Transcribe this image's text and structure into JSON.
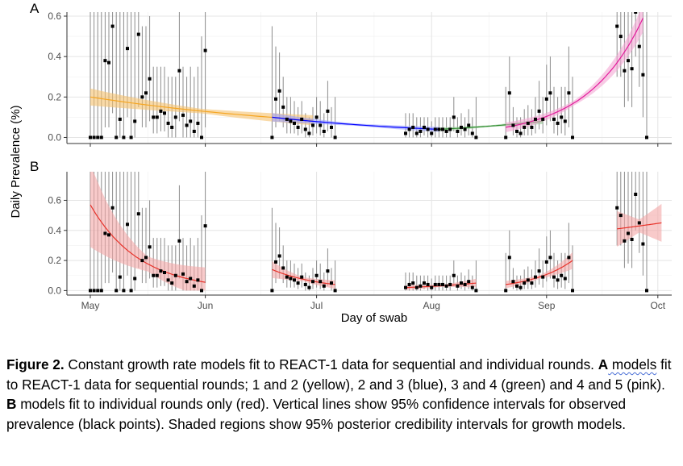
{
  "chart_data": {
    "type": "scatter",
    "xlabel": "Day of swab",
    "ylabel": "Daily Prevalence (%)",
    "x_ticks": [
      {
        "label": "May",
        "day": 0
      },
      {
        "label": "Jun",
        "day": 31
      },
      {
        "label": "Jul",
        "day": 61
      },
      {
        "label": "Aug",
        "day": 92
      },
      {
        "label": "Sep",
        "day": 123
      },
      {
        "label": "Oct",
        "day": 153
      }
    ],
    "xlim": [
      -11,
      162
    ],
    "panels": [
      {
        "label": "A",
        "ylim": [
          -0.03,
          0.62
        ],
        "y_ticks": [
          "0.0",
          "0.2",
          "0.4",
          "0.6"
        ],
        "y_tick_values": [
          0,
          0.2,
          0.4,
          0.6
        ],
        "fits": [
          {
            "name": "1 and 2",
            "color": "#f5a623",
            "fill": "#f5c16e",
            "x_start": 0,
            "x_end": 60,
            "y_start": 0.2,
            "y_end": 0.085,
            "band": 0.03
          },
          {
            "name": "2 and 3",
            "color": "#0000ff",
            "fill": "#9aa0ff",
            "x_start": 49,
            "x_end": 94,
            "y_start": 0.1,
            "y_end": 0.04,
            "band": 0.015
          },
          {
            "name": "3 and 4",
            "color": "#2e8b2e",
            "fill": "#9acd9a",
            "x_start": 94,
            "x_end": 122,
            "y_start": 0.04,
            "y_end": 0.08,
            "band": 0.01
          },
          {
            "name": "4 and 5",
            "color": "#e41a9c",
            "fill": "#f3a6d4",
            "x_start": 112,
            "x_end": 149,
            "y_start": 0.05,
            "y_end": 0.59,
            "band": 0.05
          }
        ]
      },
      {
        "label": "B",
        "ylim": [
          -0.03,
          0.79
        ],
        "y_ticks": [
          "0.0",
          "0.2",
          "0.4",
          "0.6"
        ],
        "y_tick_values": [
          0,
          0.2,
          0.4,
          0.6
        ],
        "fits": [
          {
            "name": "round 1",
            "color": "#e8322a",
            "fill": "#f4a6a6",
            "x_start": 0,
            "x_end": 31,
            "y_start": 0.57,
            "y_end": 0.055,
            "band": 0.2
          },
          {
            "name": "round 2",
            "color": "#e8322a",
            "fill": "#f4a6a6",
            "x_start": 49,
            "x_end": 66,
            "y_start": 0.14,
            "y_end": 0.04,
            "band": 0.04
          },
          {
            "name": "round 3",
            "color": "#e8322a",
            "fill": "#f4a6a6",
            "x_start": 85,
            "x_end": 104,
            "y_start": 0.02,
            "y_end": 0.05,
            "band": 0.02
          },
          {
            "name": "round 4",
            "color": "#e8322a",
            "fill": "#f4a6a6",
            "x_start": 112,
            "x_end": 130,
            "y_start": 0.04,
            "y_end": 0.2,
            "band": 0.04
          },
          {
            "name": "round 5",
            "color": "#e8322a",
            "fill": "#f4a6a6",
            "x_start": 142,
            "x_end": 154,
            "y_start": 0.41,
            "y_end": 0.45,
            "band": 0.09
          }
        ]
      }
    ],
    "observed": [
      {
        "day": 0,
        "y": 0.0,
        "ci": [
          0.0,
          1.2
        ]
      },
      {
        "day": 1,
        "y": 0.0,
        "ci": [
          0.0,
          1.2
        ]
      },
      {
        "day": 2,
        "y": 0.0,
        "ci": [
          0.0,
          1.2
        ]
      },
      {
        "day": 3,
        "y": 0.0,
        "ci": [
          0.0,
          1.2
        ]
      },
      {
        "day": 4,
        "y": 0.38,
        "ci": [
          0.05,
          1.2
        ]
      },
      {
        "day": 5,
        "y": 0.37,
        "ci": [
          0.05,
          1.2
        ]
      },
      {
        "day": 6,
        "y": 0.55,
        "ci": [
          0.12,
          1.2
        ]
      },
      {
        "day": 7,
        "y": 0.0,
        "ci": [
          0.0,
          1.2
        ]
      },
      {
        "day": 8,
        "y": 0.09,
        "ci": [
          0.0,
          1.2
        ]
      },
      {
        "day": 9,
        "y": 0.0,
        "ci": [
          0.0,
          1.2
        ]
      },
      {
        "day": 10,
        "y": 0.44,
        "ci": [
          0.1,
          0.9
        ]
      },
      {
        "day": 11,
        "y": 0.0,
        "ci": [
          0.0,
          0.9
        ]
      },
      {
        "day": 12,
        "y": 0.08,
        "ci": [
          0.0,
          0.9
        ]
      },
      {
        "day": 13,
        "y": 0.51,
        "ci": [
          0.15,
          0.9
        ]
      },
      {
        "day": 14,
        "y": 0.2,
        "ci": [
          0.05,
          0.55
        ]
      },
      {
        "day": 15,
        "y": 0.22,
        "ci": [
          0.05,
          0.55
        ]
      },
      {
        "day": 16,
        "y": 0.29,
        "ci": [
          0.08,
          0.6
        ]
      },
      {
        "day": 17,
        "y": 0.1,
        "ci": [
          0.02,
          0.35
        ]
      },
      {
        "day": 18,
        "y": 0.1,
        "ci": [
          0.02,
          0.35
        ]
      },
      {
        "day": 19,
        "y": 0.13,
        "ci": [
          0.03,
          0.35
        ]
      },
      {
        "day": 20,
        "y": 0.12,
        "ci": [
          0.03,
          0.35
        ]
      },
      {
        "day": 21,
        "y": 0.07,
        "ci": [
          0.0,
          0.3
        ]
      },
      {
        "day": 22,
        "y": 0.05,
        "ci": [
          0.0,
          0.3
        ]
      },
      {
        "day": 23,
        "y": 0.1,
        "ci": [
          0.0,
          0.3
        ]
      },
      {
        "day": 24,
        "y": 0.33,
        "ci": [
          0.08,
          0.7
        ]
      },
      {
        "day": 25,
        "y": 0.11,
        "ci": [
          0.0,
          0.35
        ]
      },
      {
        "day": 26,
        "y": 0.06,
        "ci": [
          0.0,
          0.3
        ]
      },
      {
        "day": 27,
        "y": 0.08,
        "ci": [
          0.0,
          0.35
        ]
      },
      {
        "day": 28,
        "y": 0.03,
        "ci": [
          0.0,
          0.3
        ]
      },
      {
        "day": 29,
        "y": 0.07,
        "ci": [
          0.0,
          0.35
        ]
      },
      {
        "day": 30,
        "y": 0.0,
        "ci": [
          0.0,
          0.5
        ]
      },
      {
        "day": 31,
        "y": 0.43,
        "ci": [
          0.05,
          1.2
        ]
      },
      {
        "day": 49,
        "y": 0.0,
        "ci": [
          0.0,
          0.55
        ]
      },
      {
        "day": 50,
        "y": 0.19,
        "ci": [
          0.05,
          0.45
        ]
      },
      {
        "day": 51,
        "y": 0.23,
        "ci": [
          0.08,
          0.42
        ]
      },
      {
        "day": 52,
        "y": 0.15,
        "ci": [
          0.05,
          0.3
        ]
      },
      {
        "day": 53,
        "y": 0.09,
        "ci": [
          0.02,
          0.2
        ]
      },
      {
        "day": 54,
        "y": 0.08,
        "ci": [
          0.02,
          0.2
        ]
      },
      {
        "day": 55,
        "y": 0.07,
        "ci": [
          0.02,
          0.18
        ]
      },
      {
        "day": 56,
        "y": 0.05,
        "ci": [
          0.01,
          0.15
        ]
      },
      {
        "day": 57,
        "y": 0.09,
        "ci": [
          0.02,
          0.18
        ]
      },
      {
        "day": 58,
        "y": 0.04,
        "ci": [
          0.0,
          0.12
        ]
      },
      {
        "day": 59,
        "y": 0.02,
        "ci": [
          0.0,
          0.1
        ]
      },
      {
        "day": 60,
        "y": 0.06,
        "ci": [
          0.01,
          0.15
        ]
      },
      {
        "day": 61,
        "y": 0.1,
        "ci": [
          0.02,
          0.2
        ]
      },
      {
        "day": 62,
        "y": 0.06,
        "ci": [
          0.01,
          0.18
        ]
      },
      {
        "day": 63,
        "y": 0.03,
        "ci": [
          0.0,
          0.12
        ]
      },
      {
        "day": 64,
        "y": 0.13,
        "ci": [
          0.03,
          0.28
        ]
      },
      {
        "day": 65,
        "y": 0.05,
        "ci": [
          0.0,
          0.15
        ]
      },
      {
        "day": 66,
        "y": 0.0,
        "ci": [
          0.0,
          0.2
        ]
      },
      {
        "day": 85,
        "y": 0.02,
        "ci": [
          0.0,
          0.12
        ]
      },
      {
        "day": 86,
        "y": 0.04,
        "ci": [
          0.0,
          0.12
        ]
      },
      {
        "day": 87,
        "y": 0.05,
        "ci": [
          0.0,
          0.12
        ]
      },
      {
        "day": 88,
        "y": 0.02,
        "ci": [
          0.0,
          0.1
        ]
      },
      {
        "day": 89,
        "y": 0.03,
        "ci": [
          0.0,
          0.1
        ]
      },
      {
        "day": 90,
        "y": 0.05,
        "ci": [
          0.01,
          0.1
        ]
      },
      {
        "day": 91,
        "y": 0.04,
        "ci": [
          0.0,
          0.1
        ]
      },
      {
        "day": 92,
        "y": 0.02,
        "ci": [
          0.0,
          0.08
        ]
      },
      {
        "day": 93,
        "y": 0.04,
        "ci": [
          0.0,
          0.1
        ]
      },
      {
        "day": 94,
        "y": 0.04,
        "ci": [
          0.0,
          0.1
        ]
      },
      {
        "day": 95,
        "y": 0.04,
        "ci": [
          0.0,
          0.1
        ]
      },
      {
        "day": 96,
        "y": 0.03,
        "ci": [
          0.0,
          0.1
        ]
      },
      {
        "day": 97,
        "y": 0.04,
        "ci": [
          0.0,
          0.1
        ]
      },
      {
        "day": 98,
        "y": 0.1,
        "ci": [
          0.03,
          0.2
        ]
      },
      {
        "day": 99,
        "y": 0.03,
        "ci": [
          0.0,
          0.1
        ]
      },
      {
        "day": 100,
        "y": 0.05,
        "ci": [
          0.01,
          0.12
        ]
      },
      {
        "day": 101,
        "y": 0.04,
        "ci": [
          0.0,
          0.1
        ]
      },
      {
        "day": 102,
        "y": 0.06,
        "ci": [
          0.01,
          0.14
        ]
      },
      {
        "day": 103,
        "y": 0.02,
        "ci": [
          0.0,
          0.1
        ]
      },
      {
        "day": 104,
        "y": 0.0,
        "ci": [
          0.0,
          0.2
        ]
      },
      {
        "day": 112,
        "y": 0.0,
        "ci": [
          0.0,
          0.25
        ]
      },
      {
        "day": 113,
        "y": 0.22,
        "ci": [
          0.05,
          0.4
        ]
      },
      {
        "day": 114,
        "y": 0.06,
        "ci": [
          0.01,
          0.15
        ]
      },
      {
        "day": 115,
        "y": 0.03,
        "ci": [
          0.0,
          0.1
        ]
      },
      {
        "day": 116,
        "y": 0.02,
        "ci": [
          0.0,
          0.1
        ]
      },
      {
        "day": 117,
        "y": 0.05,
        "ci": [
          0.01,
          0.14
        ]
      },
      {
        "day": 118,
        "y": 0.07,
        "ci": [
          0.01,
          0.16
        ]
      },
      {
        "day": 119,
        "y": 0.05,
        "ci": [
          0.01,
          0.14
        ]
      },
      {
        "day": 120,
        "y": 0.09,
        "ci": [
          0.02,
          0.2
        ]
      },
      {
        "day": 121,
        "y": 0.13,
        "ci": [
          0.04,
          0.28
        ]
      },
      {
        "day": 122,
        "y": 0.09,
        "ci": [
          0.02,
          0.2
        ]
      },
      {
        "day": 123,
        "y": 0.19,
        "ci": [
          0.06,
          0.36
        ]
      },
      {
        "day": 124,
        "y": 0.22,
        "ci": [
          0.08,
          0.4
        ]
      },
      {
        "day": 125,
        "y": 0.09,
        "ci": [
          0.02,
          0.25
        ]
      },
      {
        "day": 126,
        "y": 0.07,
        "ci": [
          0.01,
          0.2
        ]
      },
      {
        "day": 127,
        "y": 0.1,
        "ci": [
          0.02,
          0.25
        ]
      },
      {
        "day": 128,
        "y": 0.08,
        "ci": [
          0.01,
          0.25
        ]
      },
      {
        "day": 129,
        "y": 0.22,
        "ci": [
          0.05,
          0.45
        ]
      },
      {
        "day": 130,
        "y": 0.0,
        "ci": [
          0.0,
          0.3
        ]
      },
      {
        "day": 142,
        "y": 0.55,
        "ci": [
          0.3,
          1.2
        ]
      },
      {
        "day": 143,
        "y": 0.5,
        "ci": [
          0.3,
          1.2
        ]
      },
      {
        "day": 144,
        "y": 0.33,
        "ci": [
          0.15,
          1.2
        ]
      },
      {
        "day": 145,
        "y": 0.38,
        "ci": [
          0.18,
          1.2
        ]
      },
      {
        "day": 146,
        "y": 0.34,
        "ci": [
          0.15,
          1.2
        ]
      },
      {
        "day": 147,
        "y": 0.64,
        "ci": [
          0.4,
          1.2
        ]
      },
      {
        "day": 148,
        "y": 0.45,
        "ci": [
          0.25,
          1.2
        ]
      },
      {
        "day": 149,
        "y": 0.31,
        "ci": [
          0.1,
          0.8
        ]
      },
      {
        "day": 150,
        "y": 0.0,
        "ci": [
          0.0,
          0.8
        ]
      }
    ]
  },
  "caption": {
    "prefix": "Figure 2.",
    "text1": " Constant growth rate models fit to REACT-1 data for sequential and individual rounds. ",
    "label_a": "A",
    "text_a_underlined": " models",
    "text2": " fit to REACT-1 data for sequential rounds; 1 and 2 (yellow), 2 and 3 (blue), 3 and 4 (green) and 4 and 5 (pink). ",
    "label_b": "B",
    "text3": " models fit to individual rounds only (red). Vertical lines show 95% confidence intervals for observed prevalence (black points). Shaded regions show 95% posterior credibility intervals for growth models."
  }
}
